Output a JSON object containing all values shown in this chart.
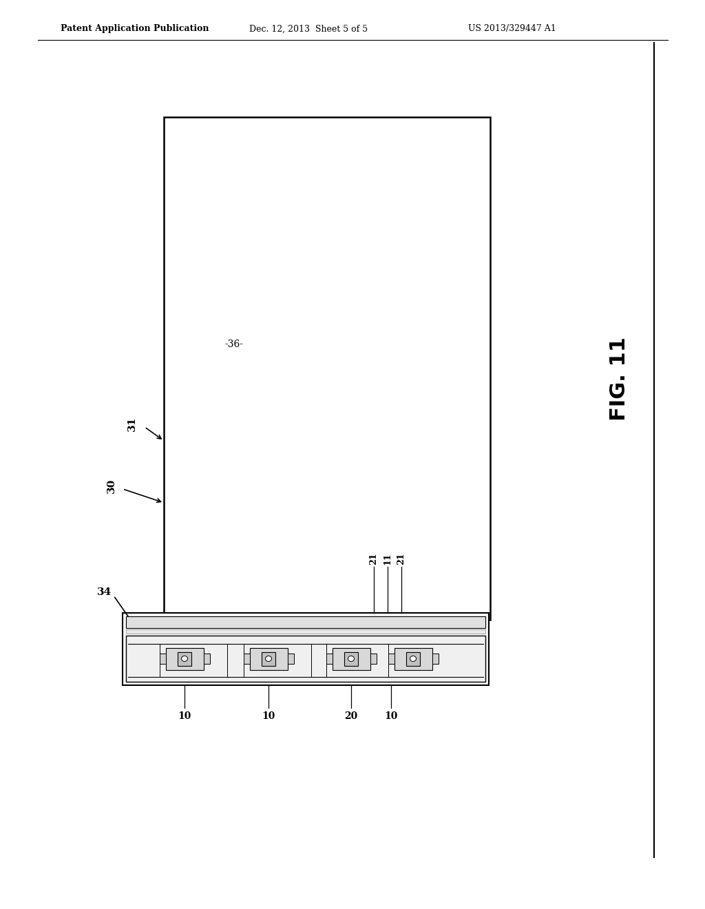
{
  "bg_color": "#ffffff",
  "header_text1": "Patent Application Publication",
  "header_text2": "Dec. 12, 2013  Sheet 5 of 5",
  "header_text3": "US 2013/329447 A1",
  "fig_label": "FIG. 11",
  "label_36": "-36-",
  "label_31": "31",
  "label_30": "30",
  "label_34": "34",
  "label_21a": "21",
  "label_11": "11",
  "label_21b": "21",
  "label_10a": "10",
  "label_10b": "10",
  "label_20": "20",
  "label_10c": "10"
}
